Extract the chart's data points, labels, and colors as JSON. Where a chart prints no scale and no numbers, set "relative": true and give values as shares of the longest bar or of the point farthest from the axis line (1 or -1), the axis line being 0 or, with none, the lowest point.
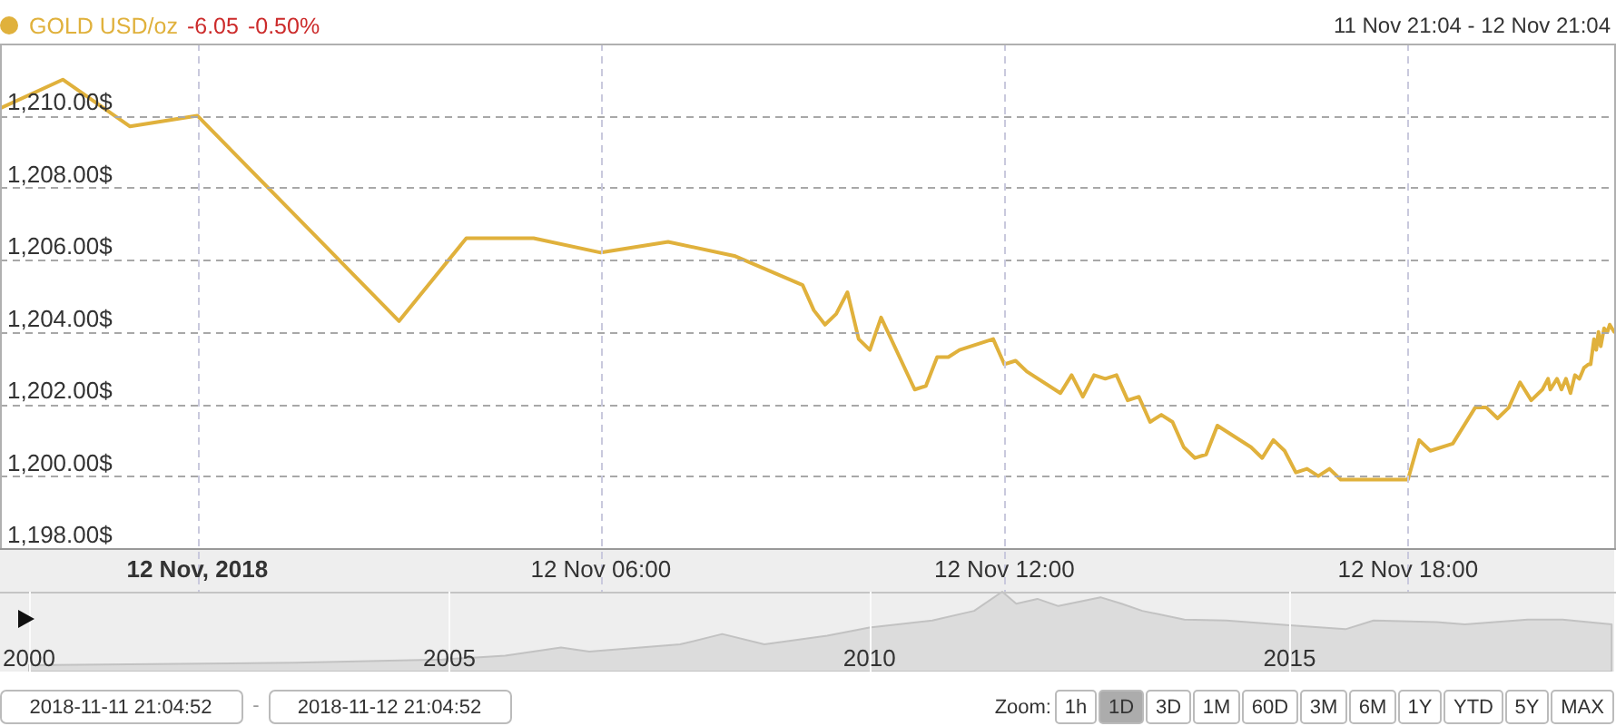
{
  "chart_data": [
    {
      "type": "line",
      "subtitle": "11 Nov 21:04 - 12 Nov 21:04",
      "annotations": [
        "-6.05",
        "-0.50%"
      ],
      "legend": "top left",
      "grid": true,
      "xlim": [
        "2018-11-11T21:04",
        "2018-11-12T21:04"
      ],
      "xticks": [
        {
          "value": "2018-11-12T00:00",
          "label": "12 Nov, 2018"
        },
        {
          "value": "2018-11-12T06:00",
          "label": "12 Nov 06:00"
        },
        {
          "value": "2018-11-12T12:00",
          "label": "12 Nov 12:00"
        },
        {
          "value": "2018-11-12T18:00",
          "label": "12 Nov 18:00"
        }
      ],
      "ylim": [
        1198,
        1212
      ],
      "yticks": [
        {
          "value": 1198,
          "label": "1,198.00$"
        },
        {
          "value": 1200,
          "label": "1,200.00$"
        },
        {
          "value": 1202,
          "label": "1,202.00$"
        },
        {
          "value": 1204,
          "label": "1,204.00$"
        },
        {
          "value": 1206,
          "label": "1,206.00$"
        },
        {
          "value": 1208,
          "label": "1,208.00$"
        },
        {
          "value": 1210,
          "label": "1,210.00$"
        }
      ],
      "x": [
        "2018-11-11T21:04",
        "2018-11-11T22:00",
        "2018-11-11T23:00",
        "2018-11-12T00:00",
        "2018-11-12T03:00",
        "2018-11-12T04:00",
        "2018-11-12T05:00",
        "2018-11-12T06:00",
        "2018-11-12T07:00",
        "2018-11-12T08:00",
        "2018-11-12T09:00",
        "2018-11-12T09:10",
        "2018-11-12T09:20",
        "2018-11-12T09:30",
        "2018-11-12T09:40",
        "2018-11-12T09:50",
        "2018-11-12T10:00",
        "2018-11-12T10:10",
        "2018-11-12T10:40",
        "2018-11-12T10:50",
        "2018-11-12T11:00",
        "2018-11-12T11:10",
        "2018-11-12T11:20",
        "2018-11-12T11:50",
        "2018-11-12T12:00",
        "2018-11-12T12:10",
        "2018-11-12T12:20",
        "2018-11-12T12:50",
        "2018-11-12T13:00",
        "2018-11-12T13:10",
        "2018-11-12T13:20",
        "2018-11-12T13:30",
        "2018-11-12T13:40",
        "2018-11-12T13:50",
        "2018-11-12T14:00",
        "2018-11-12T14:10",
        "2018-11-12T14:20",
        "2018-11-12T14:30",
        "2018-11-12T14:40",
        "2018-11-12T14:50",
        "2018-11-12T15:00",
        "2018-11-12T15:10",
        "2018-11-12T15:40",
        "2018-11-12T15:50",
        "2018-11-12T16:00",
        "2018-11-12T16:10",
        "2018-11-12T16:20",
        "2018-11-12T16:30",
        "2018-11-12T16:40",
        "2018-11-12T16:50",
        "2018-11-12T17:00",
        "2018-11-12T18:00",
        "2018-11-12T18:10",
        "2018-11-12T18:20",
        "2018-11-12T18:40",
        "2018-11-12T19:00",
        "2018-11-12T19:10",
        "2018-11-12T19:20",
        "2018-11-12T19:30",
        "2018-11-12T19:40",
        "2018-11-12T19:50",
        "2018-11-12T20:00",
        "2018-11-12T20:05",
        "2018-11-12T20:07",
        "2018-11-12T20:13",
        "2018-11-12T20:17",
        "2018-11-12T20:21",
        "2018-11-12T20:25",
        "2018-11-12T20:29",
        "2018-11-12T20:33",
        "2018-11-12T20:37",
        "2018-11-12T20:41",
        "2018-11-12T20:43",
        "2018-11-12T20:46",
        "2018-11-12T20:48",
        "2018-11-12T20:50",
        "2018-11-12T20:52",
        "2018-11-12T20:55",
        "2018-11-12T20:58",
        "2018-11-12T21:00",
        "2018-11-12T21:04"
      ],
      "series": [
        {
          "name": "GOLD USD/oz",
          "color": "#e0b13c",
          "values": [
            1210.2,
            1211.0,
            1209.7,
            1210.0,
            1204.3,
            1206.6,
            1206.6,
            1206.2,
            1206.5,
            1206.1,
            1205.3,
            1204.6,
            1204.2,
            1204.5,
            1205.1,
            1203.8,
            1203.5,
            1204.4,
            1202.4,
            1202.5,
            1203.3,
            1203.3,
            1203.5,
            1203.8,
            1203.1,
            1203.2,
            1202.9,
            1202.3,
            1202.8,
            1202.2,
            1202.8,
            1202.7,
            1202.8,
            1202.1,
            1202.2,
            1201.5,
            1201.7,
            1201.5,
            1200.8,
            1200.5,
            1200.6,
            1201.4,
            1200.8,
            1200.5,
            1201.0,
            1200.7,
            1200.1,
            1200.2,
            1200.0,
            1200.2,
            1199.9,
            1199.9,
            1201.0,
            1200.7,
            1200.9,
            1201.9,
            1201.9,
            1201.6,
            1201.9,
            1202.6,
            1202.1,
            1202.4,
            1202.7,
            1202.4,
            1202.7,
            1202.4,
            1202.7,
            1202.3,
            1202.8,
            1202.7,
            1203.0,
            1203.1,
            1203.1,
            1203.8,
            1203.5,
            1204.0,
            1203.6,
            1204.1,
            1204.0,
            1204.2,
            1204.0
          ]
        }
      ]
    },
    {
      "type": "area",
      "relative": true,
      "grid": "x",
      "tick_labels": "x",
      "color": "#dcdcdc",
      "xlim": [
        "2000-01-01",
        "2018-11-12"
      ],
      "xticks": [
        "2000",
        "2005",
        "2010",
        "2015"
      ],
      "x": [
        "2000-01",
        "2002-02",
        "2003-03",
        "2004-12",
        "2005-09",
        "2006-05",
        "2006-09",
        "2007-10",
        "2008-04",
        "2008-10",
        "2009-07",
        "2010-01",
        "2010-10",
        "2011-04",
        "2011-08",
        "2011-10",
        "2012-01",
        "2012-04",
        "2012-10",
        "2013-01",
        "2013-04",
        "2013-10",
        "2014-04",
        "2015-01",
        "2015-09",
        "2016-01",
        "2016-10",
        "2017-02",
        "2017-11",
        "2018-04",
        "2018-11"
      ],
      "values": [
        0.08,
        0.1,
        0.11,
        0.15,
        0.2,
        0.3,
        0.25,
        0.34,
        0.47,
        0.34,
        0.45,
        0.55,
        0.64,
        0.76,
        1.0,
        0.85,
        0.91,
        0.82,
        0.93,
        0.85,
        0.76,
        0.65,
        0.64,
        0.58,
        0.53,
        0.64,
        0.62,
        0.59,
        0.65,
        0.65,
        0.59
      ]
    },
    {
      "type": "other",
      "annotations": [
        "2018-11-11 21:04:52",
        "-",
        "2018-11-12 21:04:52",
        "Zoom:",
        "1h",
        "1D",
        "3D",
        "1M",
        "60D",
        "3M",
        "6M",
        "1Y",
        "YTD",
        "5Y",
        "MAX"
      ]
    }
  ]
}
